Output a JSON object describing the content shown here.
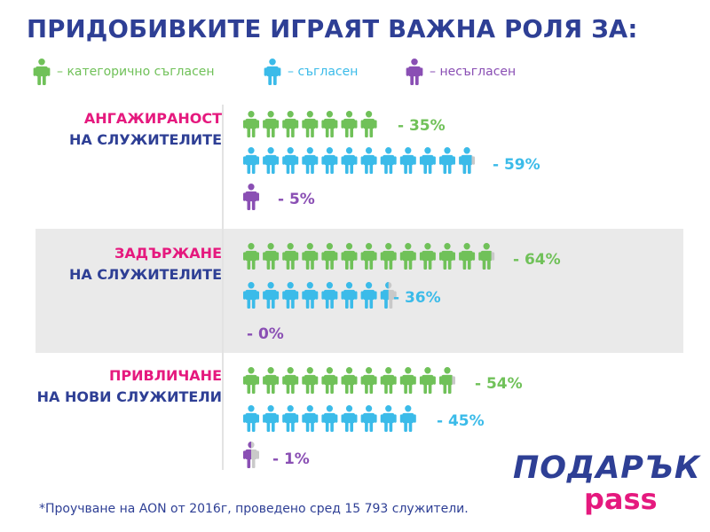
{
  "title": "ПРИДОБИВКИТЕ ИГРАЯТ ВАЖНА РОЛЯ ЗА:",
  "legend": [
    {
      "label": "– категорично съгласен",
      "color": "#70c159"
    },
    {
      "label": "– съгласен",
      "color": "#3bbbe9"
    },
    {
      "label": "– несъгласен",
      "color": "#8a4fb4"
    }
  ],
  "colors": {
    "agree_strongly": "#70c159",
    "agree": "#3bbbe9",
    "disagree": "#8a4fb4",
    "inactive": "#c9c9c9",
    "pink": "#e5197e",
    "navy": "#2e3f95",
    "band": "#eaeaea"
  },
  "chart_data": {
    "type": "pictograph",
    "title": "ПРИДОБИВКИТЕ ИГРАЯТ ВАЖНА РОЛЯ ЗА:",
    "categories": [
      {
        "label_highlight": "АНГАЖИРАНОСТ",
        "label_rest": "НА СЛУЖИТЕЛИТЕ"
      },
      {
        "label_highlight": "ЗАДЪРЖАНЕ",
        "label_rest": "НА СЛУЖИТЕЛИТЕ"
      },
      {
        "label_highlight": "ПРИВЛИЧАНЕ",
        "label_rest": "НА НОВИ СЛУЖИТЕЛИ"
      }
    ],
    "series": [
      {
        "name": "категорично съгласен",
        "values": [
          35,
          64,
          54
        ],
        "labels": [
          "- 35%",
          "- 64%",
          "- 54%"
        ]
      },
      {
        "name": "съгласен",
        "values": [
          59,
          36,
          45
        ],
        "labels": [
          "- 59%",
          "- 36%",
          "- 45%"
        ]
      },
      {
        "name": "несъгласен",
        "values": [
          5,
          0,
          1
        ],
        "labels": [
          "- 5%",
          "- 0%",
          "- 1%"
        ]
      }
    ]
  },
  "footnote": "*Проучване на AON от 2016г, проведено сред 15 793 служители.",
  "logo": {
    "line1": "ПОДАРЪК",
    "line2": "pass"
  }
}
